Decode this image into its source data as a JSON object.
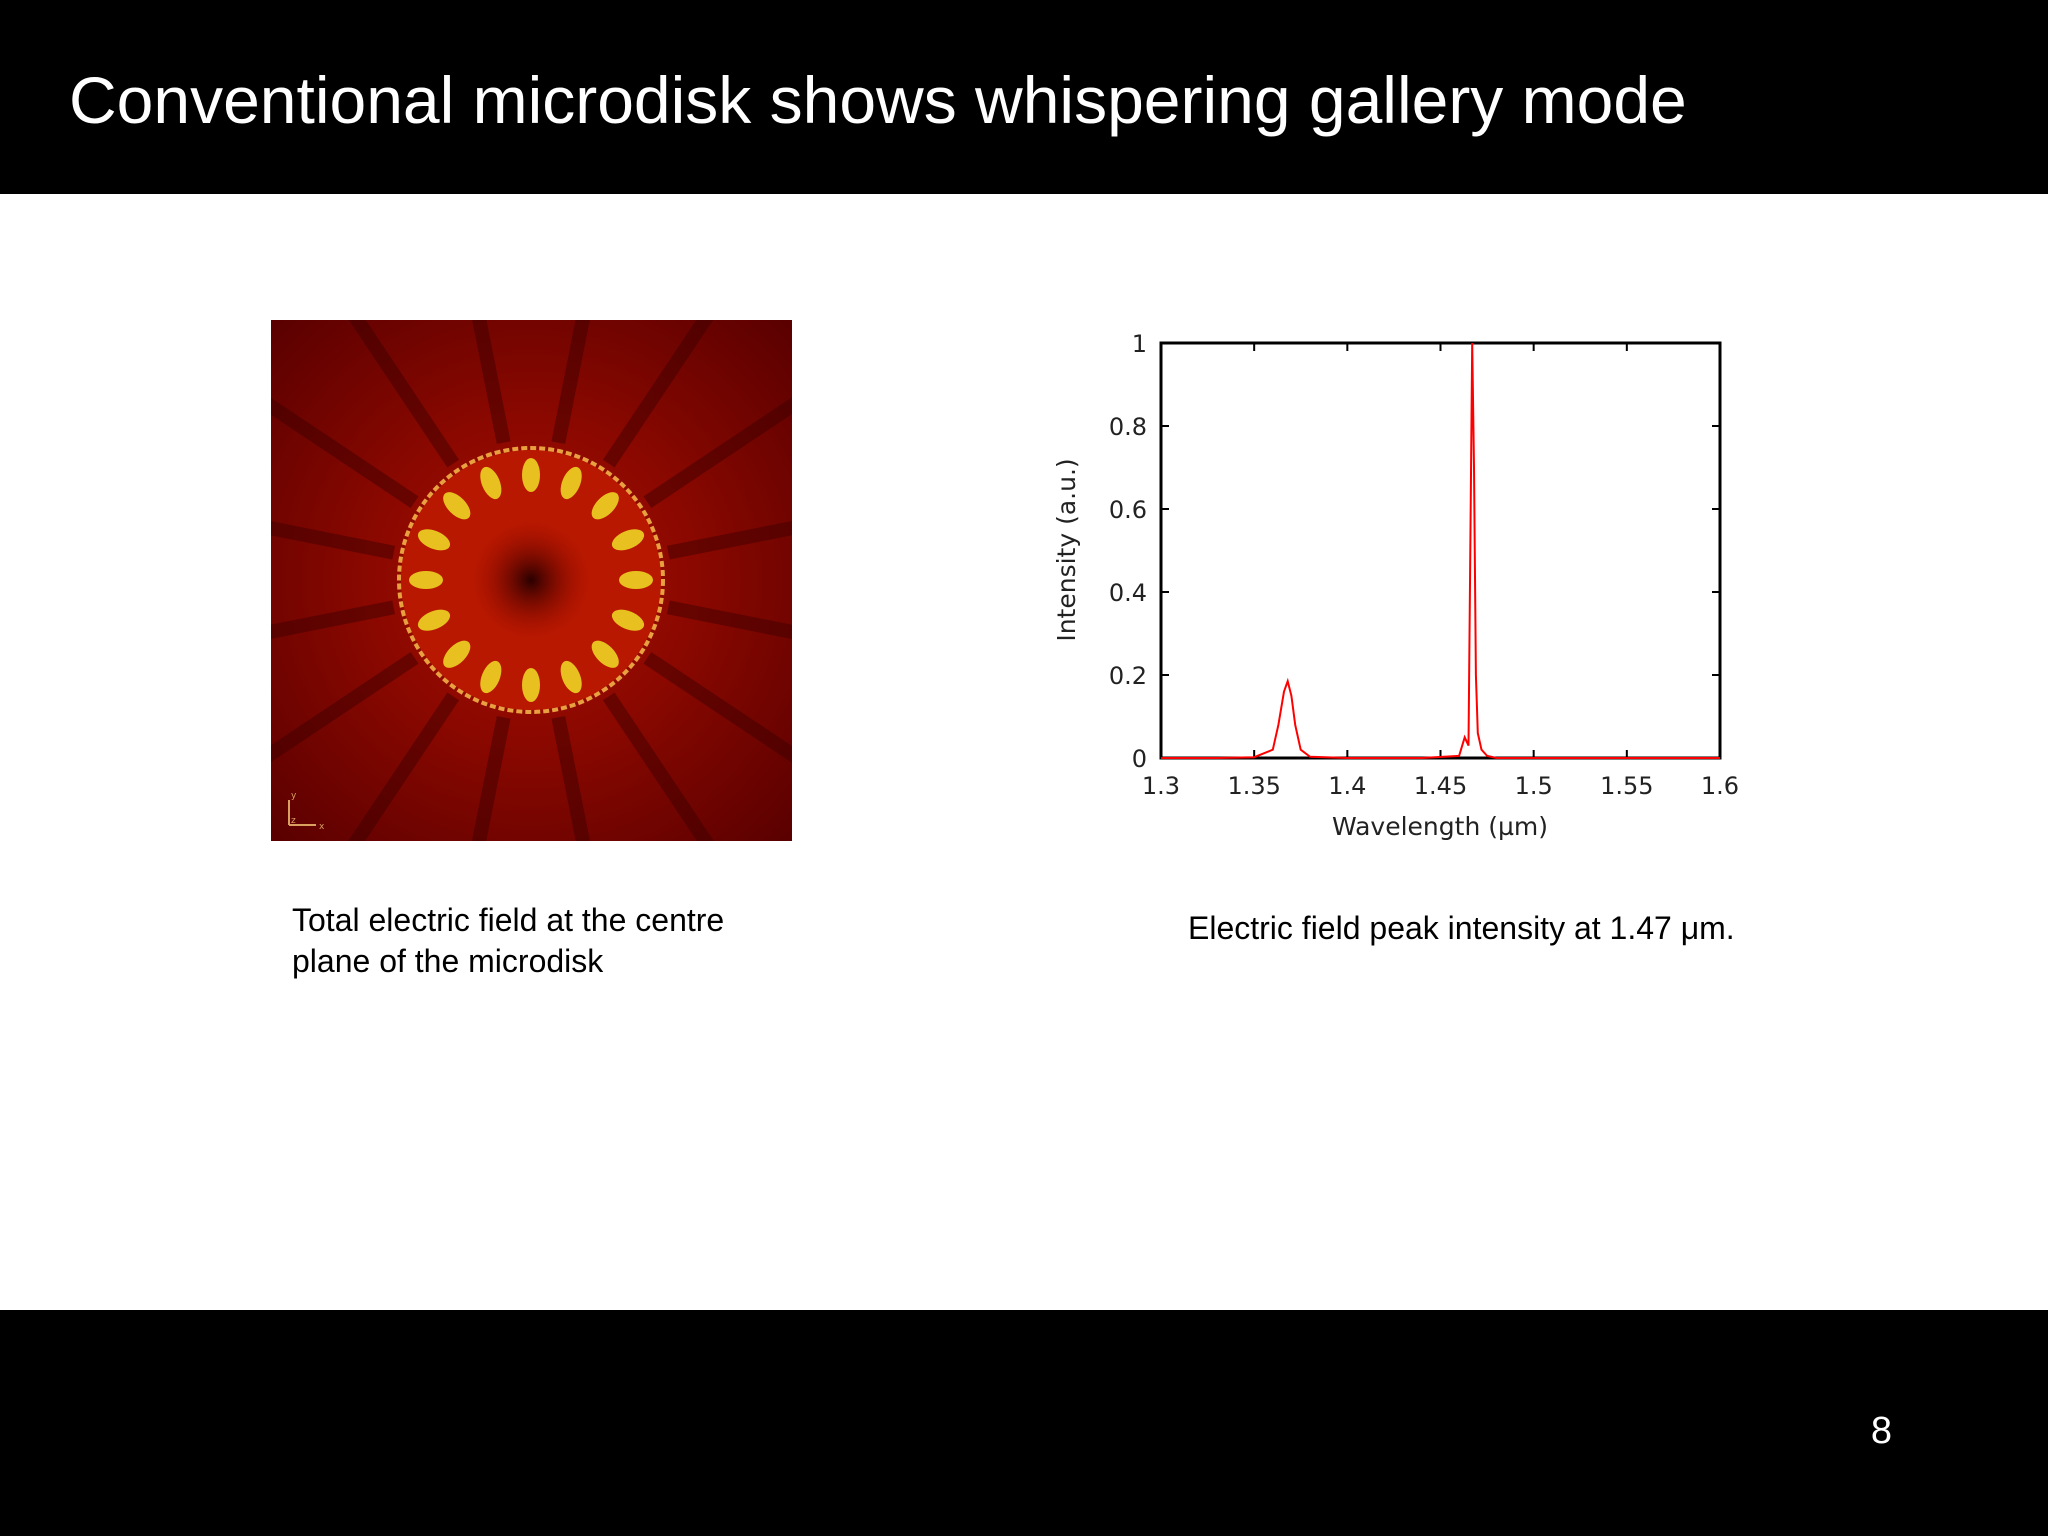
{
  "slide": {
    "title": "Conventional microdisk shows whispering gallery mode",
    "page_number": "8"
  },
  "left_figure": {
    "caption_line1": "Total electric field at the centre",
    "caption_line2": "plane of the microdisk",
    "lobes": 16,
    "colors": {
      "background": "#7a0000",
      "lobe": "#e8c020",
      "ring": "#e8b040"
    }
  },
  "right_figure": {
    "caption": "Electric field peak intensity at 1.47 μm."
  },
  "chart_data": {
    "type": "line",
    "xlabel": "Wavelength (µm)",
    "ylabel": "Intensity (a.u.)",
    "xlim": [
      1.3,
      1.6
    ],
    "ylim": [
      0,
      1
    ],
    "xticks": [
      "1.3",
      "1.35",
      "1.4",
      "1.45",
      "1.5",
      "1.55",
      "1.6"
    ],
    "yticks": [
      "0",
      "0.2",
      "0.4",
      "0.6",
      "0.8",
      "1"
    ],
    "series": [
      {
        "color": "#ff0000",
        "x": [
          1.3,
          1.33,
          1.35,
          1.36,
          1.363,
          1.366,
          1.368,
          1.37,
          1.372,
          1.375,
          1.38,
          1.4,
          1.44,
          1.46,
          1.463,
          1.465,
          1.466,
          1.467,
          1.468,
          1.469,
          1.47,
          1.472,
          1.475,
          1.48,
          1.5,
          1.55,
          1.6
        ],
        "y": [
          0.0,
          0.0,
          0.002,
          0.02,
          0.08,
          0.16,
          0.185,
          0.15,
          0.08,
          0.02,
          0.003,
          0.0,
          0.0,
          0.005,
          0.05,
          0.03,
          0.5,
          1.0,
          0.7,
          0.2,
          0.06,
          0.02,
          0.005,
          0.0,
          0.0,
          0.0,
          0.0
        ]
      }
    ]
  }
}
